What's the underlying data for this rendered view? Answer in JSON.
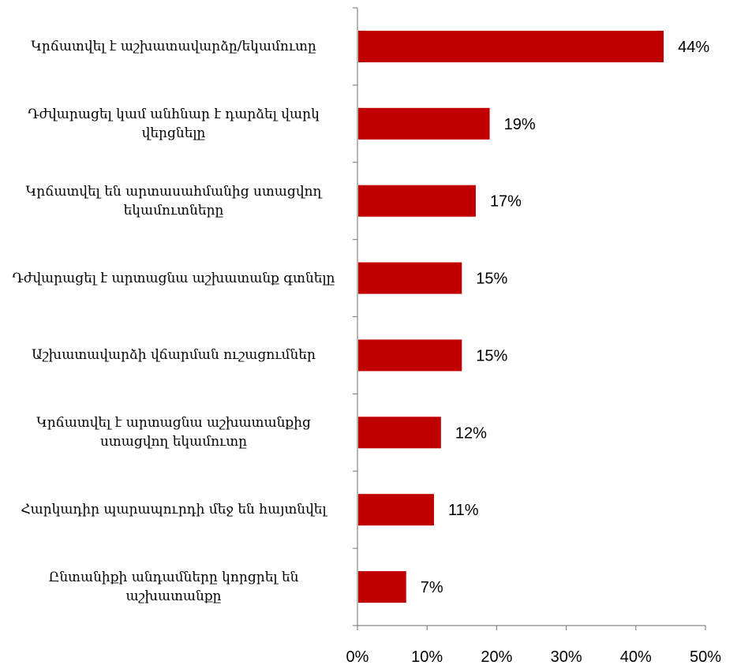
{
  "chart_data": {
    "type": "bar",
    "orientation": "horizontal",
    "categories": [
      "Կրճատվել է աշխատավարձը/եկամուտը",
      "Դժվարացել կամ անհնար է դարձել վարկ վերցնելը",
      "Կրճատվել են արտասահմանից ստացվող եկամուտները",
      "Դժվարացել է արտացնա աշխատանք գտնելը",
      "Աշխատավարձի վճարման ուշացումներ",
      "Կրճատվել է արտացնա աշխատանքից ստացվող եկամուտը",
      "Հարկադիր պարապուրդի մեջ են հայտնվել",
      "Ընտանիքի անդամները կորցրել են աշխատանքը"
    ],
    "values": [
      44,
      19,
      17,
      15,
      15,
      12,
      11,
      7
    ],
    "value_labels": [
      "44%",
      "19%",
      "17%",
      "15%",
      "15%",
      "12%",
      "11%",
      "7%"
    ],
    "x_ticks": [
      "0%",
      "10%",
      "20%",
      "30%",
      "40%",
      "50%"
    ],
    "xlim": [
      0,
      50
    ],
    "bar_color": "#c00000",
    "axis_color": "#868686",
    "grid": false,
    "legend": "none",
    "title": "",
    "xlabel": "",
    "ylabel": ""
  }
}
